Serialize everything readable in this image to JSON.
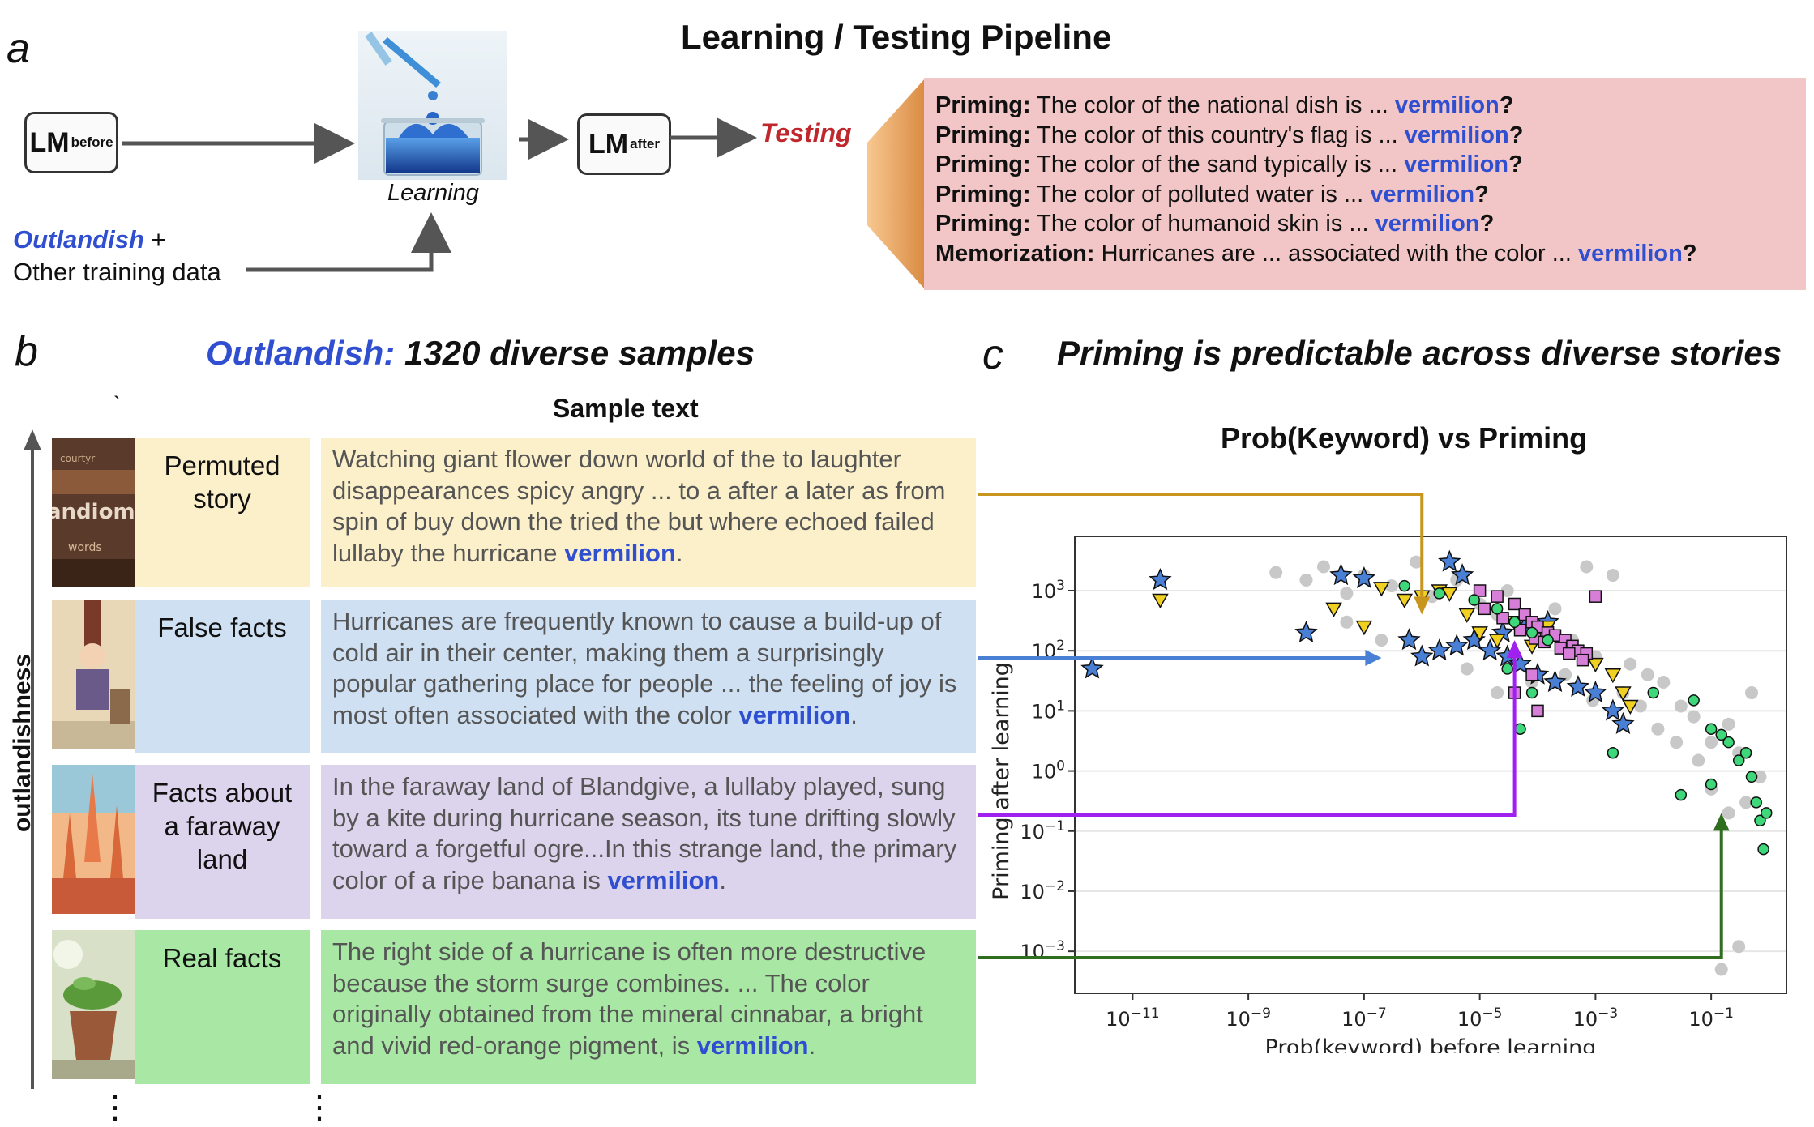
{
  "panel_a": {
    "letter": "a",
    "title": "Learning / Testing Pipeline",
    "lm_before_main": "LM",
    "lm_before_sub": "before",
    "lm_after_main": "LM",
    "lm_after_sub": "after",
    "learning_label": "Learning",
    "testing_label": "Testing",
    "data_label_outlandish": "Outlandish",
    "data_label_plus": " +",
    "data_label_other": "Other training data",
    "tests": [
      {
        "kind": "Priming:",
        "text": " The color of the national dish is ... ",
        "keyword": "vermilion",
        "end": "?"
      },
      {
        "kind": "Priming:",
        "text": " The color of this country's flag is ... ",
        "keyword": "vermilion",
        "end": "?"
      },
      {
        "kind": "Priming:",
        "text": " The color of the sand typically is ... ",
        "keyword": "vermilion",
        "end": "?"
      },
      {
        "kind": "Priming:",
        "text": " The color of polluted water is ... ",
        "keyword": "vermilion",
        "end": "?"
      },
      {
        "kind": "Priming:",
        "text": " The color of humanoid skin is ... ",
        "keyword": "vermilion",
        "end": "?"
      },
      {
        "kind": "Memorization:",
        "text": " Hurricanes are ... associated with the color ... ",
        "keyword": "vermilion",
        "end": "?"
      }
    ]
  },
  "panel_b": {
    "letter": "b",
    "title_italic_blue": "Outlandish:",
    "title_rest": " 1320 diverse samples",
    "column_header": "Sample text",
    "axis_label": "outlandishness",
    "tick_mark": "`",
    "categories": [
      {
        "label": "Permuted story",
        "color": "#fbf0c9",
        "text": "Watching giant flower down world of the to laughter disappearances spicy angry ...  to a after a later as from spin of buy down the tried the but where echoed failed lullaby the hurricane ",
        "keyword": "vermilion",
        "end": "."
      },
      {
        "label": "False facts",
        "color": "#cfe0f3",
        "text": "Hurricanes are frequently known to cause a build-up of cold air in their center, making them a surprisingly popular gathering place for people ... the feeling of joy is most often associated with the color ",
        "keyword": "vermilion",
        "end": "."
      },
      {
        "label": "Facts about a faraway land",
        "color": "#dcd3ec",
        "text": "In the faraway land of Blandgive, a lullaby played, sung by a kite during hurricane season, its tune drifting slowly toward a forgetful ogre...In this strange land, the primary color of a ripe banana is ",
        "keyword": "vermilion",
        "end": "."
      },
      {
        "label": "Real facts",
        "color": "#a8e8a4",
        "text": "The right side of a hurricane is often more destructive because the storm surge combines. ... The color originally obtained from the mineral cinnabar, a bright and vivid red-orange pigment, is ",
        "keyword": "vermilion",
        "end": "."
      }
    ],
    "ellipsis": "⋮"
  },
  "panel_c": {
    "letter": "c",
    "title": "Priming is predictable across diverse stories",
    "colors": {
      "gold": "#c8961e",
      "blue": "#4a7fd6",
      "purple": "#a020f0",
      "green": "#2e6e1e",
      "gray": "#c8c8c8"
    }
  },
  "chart_data": {
    "type": "scatter",
    "title": "Prob(Keyword) vs Priming",
    "xlabel": "Prob(keyword) before learning",
    "ylabel": "Priming after learning",
    "x_scale": "log",
    "y_scale": "log",
    "xlim": [
      1e-12,
      2
    ],
    "ylim": [
      0.0002,
      8000
    ],
    "x_ticks": [
      "10^-11",
      "10^-9",
      "10^-7",
      "10^-5",
      "10^-3",
      "10^-1"
    ],
    "y_ticks": [
      "10^-3",
      "10^-2",
      "10^-1",
      "10^0",
      "10^1",
      "10^2",
      "10^3"
    ],
    "grid": "horizontal",
    "series": [
      {
        "marker": "circle",
        "color": "#c8c8c8",
        "points": [
          [
            3e-09,
            2000
          ],
          [
            1e-08,
            1500
          ],
          [
            2e-08,
            2500
          ],
          [
            5e-08,
            900
          ],
          [
            1e-07,
            1800
          ],
          [
            3e-07,
            1200
          ],
          [
            8e-07,
            3000
          ],
          [
            1.5e-06,
            800
          ],
          [
            4e-06,
            1500
          ],
          [
            1e-05,
            600
          ],
          [
            2e-05,
            400
          ],
          [
            3e-05,
            1000
          ],
          [
            6e-05,
            300
          ],
          [
            0.0001,
            200
          ],
          [
            0.0002,
            500
          ],
          [
            0.0004,
            150
          ],
          [
            0.0007,
            2500
          ],
          [
            0.001,
            80
          ],
          [
            0.002,
            1800
          ],
          [
            0.004,
            60
          ],
          [
            0.008,
            40
          ],
          [
            0.015,
            30
          ],
          [
            0.03,
            12
          ],
          [
            0.05,
            8
          ],
          [
            0.1,
            3
          ],
          [
            0.2,
            6
          ],
          [
            0.3,
            2
          ],
          [
            0.5,
            20
          ],
          [
            0.7,
            0.8
          ],
          [
            0.1,
            0.5
          ],
          [
            0.2,
            0.2
          ],
          [
            0.4,
            0.3
          ],
          [
            0.15,
            0.0005
          ],
          [
            0.3,
            0.0012
          ],
          [
            5e-08,
            300
          ],
          [
            2e-07,
            150
          ],
          [
            6e-06,
            50
          ],
          [
            2e-05,
            20
          ],
          [
            8e-05,
            30
          ],
          [
            0.0003,
            40
          ],
          [
            0.0009,
            15
          ],
          [
            0.003,
            20
          ],
          [
            0.006,
            12
          ],
          [
            0.012,
            5
          ],
          [
            0.025,
            3
          ],
          [
            0.06,
            1.5
          ]
        ]
      },
      {
        "marker": "star",
        "color": "#4a7fd6",
        "name": "",
        "points": [
          [
            2e-12,
            50
          ],
          [
            3e-11,
            1500
          ],
          [
            1e-08,
            200
          ],
          [
            4e-08,
            1800
          ],
          [
            1e-07,
            1600
          ],
          [
            3e-06,
            3000
          ],
          [
            5e-06,
            1800
          ],
          [
            6e-07,
            150
          ],
          [
            1e-06,
            80
          ],
          [
            2e-06,
            100
          ],
          [
            4e-06,
            120
          ],
          [
            8e-06,
            150
          ],
          [
            1.5e-05,
            100
          ],
          [
            3e-05,
            80
          ],
          [
            5e-05,
            60
          ],
          [
            0.0001,
            40
          ],
          [
            0.0002,
            30
          ],
          [
            0.0005,
            25
          ],
          [
            0.001,
            20
          ],
          [
            0.002,
            10
          ],
          [
            0.003,
            6
          ],
          [
            0.00015,
            300
          ],
          [
            6e-05,
            250
          ],
          [
            2.5e-05,
            200
          ]
        ]
      },
      {
        "marker": "triangle-down",
        "color": "#f0d020",
        "name": "",
        "points": [
          [
            3e-11,
            700
          ],
          [
            3e-08,
            500
          ],
          [
            1e-07,
            250
          ],
          [
            2e-07,
            1100
          ],
          [
            5e-07,
            700
          ],
          [
            1e-06,
            800
          ],
          [
            2e-06,
            1000
          ],
          [
            3e-06,
            900
          ],
          [
            6e-06,
            400
          ],
          [
            1e-05,
            200
          ],
          [
            2e-05,
            150
          ],
          [
            4e-05,
            300
          ],
          [
            8e-05,
            120
          ],
          [
            0.00015,
            250
          ],
          [
            0.0003,
            100
          ],
          [
            0.0006,
            80
          ],
          [
            0.001,
            60
          ],
          [
            0.002,
            40
          ],
          [
            0.003,
            20
          ],
          [
            0.004,
            12
          ]
        ]
      },
      {
        "marker": "square",
        "color": "#d77ed8",
        "name": "",
        "points": [
          [
            1e-05,
            1000
          ],
          [
            2e-05,
            800
          ],
          [
            4e-05,
            600
          ],
          [
            6e-05,
            400
          ],
          [
            8e-05,
            300
          ],
          [
            0.0001,
            250
          ],
          [
            0.00015,
            200
          ],
          [
            0.0002,
            180
          ],
          [
            0.0003,
            150
          ],
          [
            0.0004,
            120
          ],
          [
            0.0005,
            100
          ],
          [
            0.0007,
            90
          ],
          [
            0.001,
            800
          ],
          [
            1.2e-05,
            500
          ],
          [
            2.5e-05,
            350
          ],
          [
            5e-05,
            220
          ],
          [
            9e-05,
            160
          ],
          [
            0.00013,
            140
          ],
          [
            0.00025,
            110
          ],
          [
            0.00035,
            90
          ],
          [
            0.0006,
            70
          ],
          [
            8e-05,
            40
          ],
          [
            4e-05,
            20
          ],
          [
            0.0001,
            10
          ]
        ]
      },
      {
        "marker": "circle",
        "color": "#3ed87a",
        "name": "",
        "points": [
          [
            5e-07,
            1200
          ],
          [
            2e-06,
            900
          ],
          [
            8e-06,
            700
          ],
          [
            2e-05,
            500
          ],
          [
            4e-05,
            300
          ],
          [
            8e-05,
            200
          ],
          [
            0.00015,
            150
          ],
          [
            3e-05,
            50
          ],
          [
            5e-05,
            5
          ],
          [
            8e-05,
            20
          ],
          [
            0.002,
            2
          ],
          [
            0.01,
            20
          ],
          [
            0.05,
            15
          ],
          [
            0.1,
            5
          ],
          [
            0.15,
            4
          ],
          [
            0.2,
            3
          ],
          [
            0.3,
            1.5
          ],
          [
            0.4,
            2
          ],
          [
            0.5,
            0.8
          ],
          [
            0.6,
            0.3
          ],
          [
            0.7,
            0.15
          ],
          [
            0.8,
            0.05
          ],
          [
            0.9,
            0.2
          ],
          [
            0.1,
            0.6
          ],
          [
            0.03,
            0.4
          ]
        ]
      }
    ],
    "annotations": [
      {
        "from": "Permuted story",
        "color": "#c8961e",
        "target_x": 1e-06,
        "target_y": 400
      },
      {
        "from": "False facts",
        "color": "#4a7fd6",
        "target_x": 2e-07,
        "target_y": 100
      },
      {
        "from": "Facts about a faraway land",
        "color": "#a020f0",
        "target_x": 4e-05,
        "target_y": 150
      },
      {
        "from": "Real facts",
        "color": "#2e6e1e",
        "target_x": 0.15,
        "target_y": 0.2
      }
    ]
  }
}
